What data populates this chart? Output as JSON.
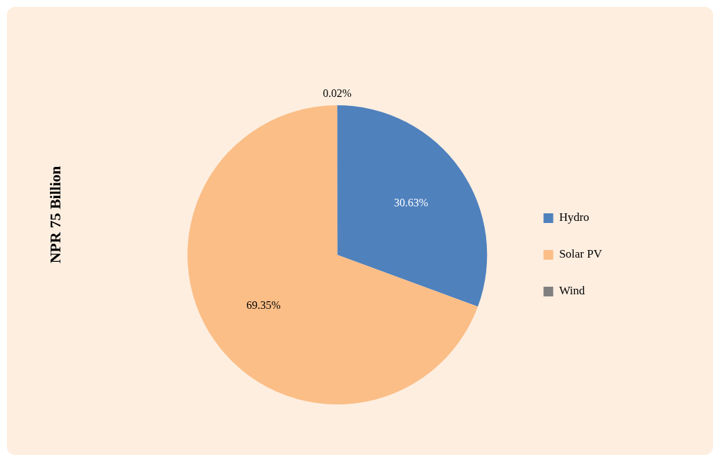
{
  "chart_data": {
    "type": "pie",
    "ylabel": "NPR 75 Billion",
    "categories": [
      "Hydro",
      "Solar PV",
      "Wind"
    ],
    "values": [
      30.63,
      69.35,
      0.02
    ],
    "colors": [
      "#4f81bd",
      "#fbbe87",
      "#808080"
    ],
    "value_labels": [
      "30.63%",
      "69.35%",
      "0.02%"
    ],
    "legend": "right"
  }
}
